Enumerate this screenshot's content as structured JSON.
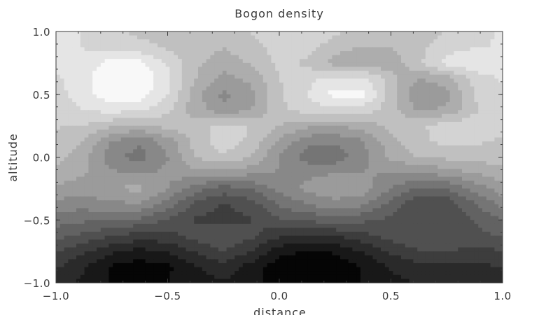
{
  "chart_data": {
    "type": "heatmap",
    "subtype": "filled-contour",
    "title": "Bogon density",
    "xlabel": "distance",
    "ylabel": "altitude",
    "xlim": [
      -1.0,
      1.0
    ],
    "ylim": [
      -1.0,
      1.0
    ],
    "x_ticks": [
      "−1.0",
      "−0.5",
      "0.0",
      "0.5",
      "1.0"
    ],
    "x_tick_values": [
      -1.0,
      -0.5,
      0.0,
      0.5,
      1.0
    ],
    "y_ticks": [
      "−1.0",
      "−0.5",
      "0.0",
      "0.5",
      "1.0"
    ],
    "y_tick_values": [
      -1.0,
      -0.5,
      0.0,
      0.5,
      1.0
    ],
    "colormap": "grayscale",
    "color_low": "#050505",
    "color_high": "#f8f8f8",
    "contour_levels": 14,
    "grid": false,
    "legend": "none",
    "x": [
      -1.0,
      -0.875,
      -0.75,
      -0.625,
      -0.5,
      -0.375,
      -0.25,
      -0.125,
      0.0,
      0.125,
      0.25,
      0.375,
      0.5,
      0.625,
      0.75,
      0.875,
      1.0
    ],
    "y": [
      1.0,
      0.875,
      0.75,
      0.625,
      0.5,
      0.375,
      0.25,
      0.125,
      0.0,
      -0.125,
      -0.25,
      -0.375,
      -0.5,
      -0.625,
      -0.75,
      -0.875,
      -1.0
    ],
    "z": [
      [
        12.2,
        11.4,
        10.9,
        10.2,
        10.0,
        9.9,
        10.1,
        10.6,
        11.3,
        11.4,
        10.7,
        10.1,
        10.0,
        10.1,
        10.6,
        11.2,
        11.6
      ],
      [
        12.1,
        11.4,
        11.1,
        10.9,
        10.4,
        9.9,
        9.6,
        10.1,
        11.0,
        10.9,
        10.0,
        9.5,
        9.6,
        10.3,
        11.0,
        11.4,
        11.6
      ],
      [
        11.7,
        11.9,
        12.8,
        12.7,
        11.3,
        9.8,
        9.1,
        9.7,
        10.8,
        10.3,
        9.1,
        8.8,
        9.0,
        10.3,
        12.0,
        12.4,
        11.6
      ],
      [
        11.3,
        12.1,
        13.4,
        13.3,
        11.8,
        9.6,
        8.2,
        8.9,
        10.5,
        11.2,
        11.8,
        11.8,
        10.0,
        8.6,
        9.1,
        10.9,
        11.6
      ],
      [
        11.1,
        12.1,
        13.2,
        13.0,
        11.5,
        9.0,
        7.4,
        8.3,
        10.4,
        11.5,
        12.8,
        12.8,
        10.1,
        7.6,
        8.3,
        10.6,
        11.4
      ],
      [
        10.9,
        11.5,
        11.8,
        11.6,
        10.8,
        9.0,
        8.0,
        8.6,
        10.2,
        11.0,
        11.2,
        11.0,
        10.0,
        8.5,
        8.8,
        10.4,
        11.2
      ],
      [
        10.6,
        10.5,
        9.8,
        9.4,
        9.9,
        10.1,
        10.9,
        10.5,
        9.6,
        8.8,
        8.7,
        9.0,
        9.9,
        10.3,
        11.1,
        11.0,
        10.8
      ],
      [
        10.3,
        9.5,
        7.6,
        6.8,
        8.1,
        10.0,
        11.1,
        10.3,
        8.4,
        7.0,
        6.8,
        7.6,
        9.2,
        10.3,
        10.8,
        10.7,
        10.4
      ],
      [
        9.9,
        9.0,
        7.0,
        6.3,
        7.6,
        9.6,
        10.4,
        9.5,
        7.6,
        6.2,
        6.1,
        7.3,
        8.8,
        9.6,
        9.8,
        10.0,
        9.9
      ],
      [
        9.3,
        8.7,
        7.8,
        7.5,
        7.9,
        8.3,
        8.2,
        7.9,
        7.6,
        7.4,
        7.6,
        7.7,
        7.7,
        7.7,
        8.1,
        8.7,
        9.2
      ],
      [
        8.4,
        8.1,
        8.6,
        8.9,
        7.7,
        6.1,
        5.3,
        5.8,
        7.0,
        7.9,
        8.5,
        8.1,
        6.7,
        5.5,
        5.7,
        7.0,
        8.2
      ],
      [
        7.3,
        7.1,
        7.5,
        7.5,
        6.3,
        4.6,
        3.7,
        4.3,
        5.9,
        6.7,
        7.3,
        6.9,
        5.4,
        4.0,
        4.1,
        5.7,
        7.0
      ],
      [
        6.2,
        5.9,
        5.9,
        5.5,
        4.6,
        3.7,
        3.4,
        3.8,
        4.6,
        5.0,
        5.3,
        5.0,
        4.5,
        4.0,
        4.0,
        4.8,
        5.8
      ],
      [
        5.1,
        4.5,
        3.9,
        3.4,
        3.5,
        4.2,
        4.7,
        4.1,
        3.0,
        2.7,
        2.9,
        3.5,
        4.3,
        4.8,
        4.9,
        4.6,
        4.8
      ],
      [
        3.9,
        3.1,
        2.1,
        1.6,
        2.0,
        3.0,
        3.8,
        2.8,
        1.4,
        0.9,
        1.1,
        2.0,
        3.0,
        3.7,
        3.8,
        3.5,
        3.8
      ],
      [
        3.0,
        2.0,
        0.8,
        0.4,
        0.8,
        1.8,
        2.5,
        1.5,
        0.3,
        0.0,
        0.2,
        1.0,
        2.0,
        2.6,
        2.7,
        2.6,
        2.9
      ],
      [
        2.5,
        1.7,
        0.9,
        0.6,
        0.9,
        1.5,
        1.8,
        1.2,
        0.5,
        0.2,
        0.4,
        1.0,
        1.6,
        2.0,
        2.1,
        2.2,
        2.4
      ]
    ]
  }
}
